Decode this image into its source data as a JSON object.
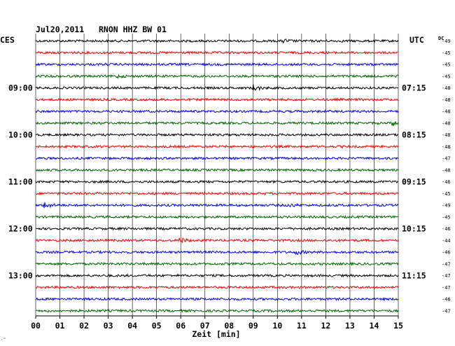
{
  "header": {
    "title": "Jul20,2011   RNON HHZ BW 01",
    "left_tz": "CES",
    "right_tz": "UTC",
    "dc_label": "DC"
  },
  "footer": {
    "xlabel": "Zeit [min]",
    "corner_mark": "·‴"
  },
  "colors": {
    "trace_cycle": [
      "#000000",
      "#ff0000",
      "#0000ff",
      "#006400"
    ],
    "grid": "#000000"
  },
  "chart_data": {
    "type": "line",
    "title": "Jul20,2011   RNON HHZ BW 01",
    "xlabel": "Zeit [min]",
    "xlim": [
      0,
      15
    ],
    "x_ticks": [
      "00",
      "01",
      "02",
      "03",
      "04",
      "05",
      "06",
      "07",
      "08",
      "09",
      "10",
      "11",
      "12",
      "13",
      "14",
      "15"
    ],
    "minutes_per_line": 15,
    "num_lines": 24,
    "left_time_labels": [
      {
        "line": 4,
        "label": "09:00"
      },
      {
        "line": 8,
        "label": "10:00"
      },
      {
        "line": 12,
        "label": "11:00"
      },
      {
        "line": 16,
        "label": "12:00"
      },
      {
        "line": 20,
        "label": "13:00"
      }
    ],
    "right_time_labels": [
      {
        "line": 0,
        "label": "UTC"
      },
      {
        "line": 4,
        "label": "07:15"
      },
      {
        "line": 8,
        "label": "08:15"
      },
      {
        "line": 12,
        "label": "09:15"
      },
      {
        "line": 16,
        "label": "10:15"
      },
      {
        "line": 20,
        "label": "11:15"
      }
    ],
    "dc_offsets": [
      -49,
      -45,
      -45,
      -45,
      -48,
      -48,
      -48,
      -48,
      -48,
      -48,
      -47,
      -48,
      -46,
      -45,
      -49,
      -45,
      -46,
      -44,
      -46,
      -47,
      -47,
      -47,
      -46,
      -47
    ],
    "events": [
      {
        "line": 0,
        "minute": 10.3,
        "amplitude": 2
      },
      {
        "line": 3,
        "minute": 3.4,
        "amplitude": 1.5
      },
      {
        "line": 4,
        "minute": 9.0,
        "amplitude": 4
      },
      {
        "line": 7,
        "minute": 14.8,
        "amplitude": 3
      },
      {
        "line": 14,
        "minute": 0.4,
        "amplitude": 4
      },
      {
        "line": 14,
        "minute": 10.5,
        "amplitude": 2
      },
      {
        "line": 17,
        "minute": 6.0,
        "amplitude": 3
      },
      {
        "line": 18,
        "minute": 10.8,
        "amplitude": 3
      }
    ]
  }
}
